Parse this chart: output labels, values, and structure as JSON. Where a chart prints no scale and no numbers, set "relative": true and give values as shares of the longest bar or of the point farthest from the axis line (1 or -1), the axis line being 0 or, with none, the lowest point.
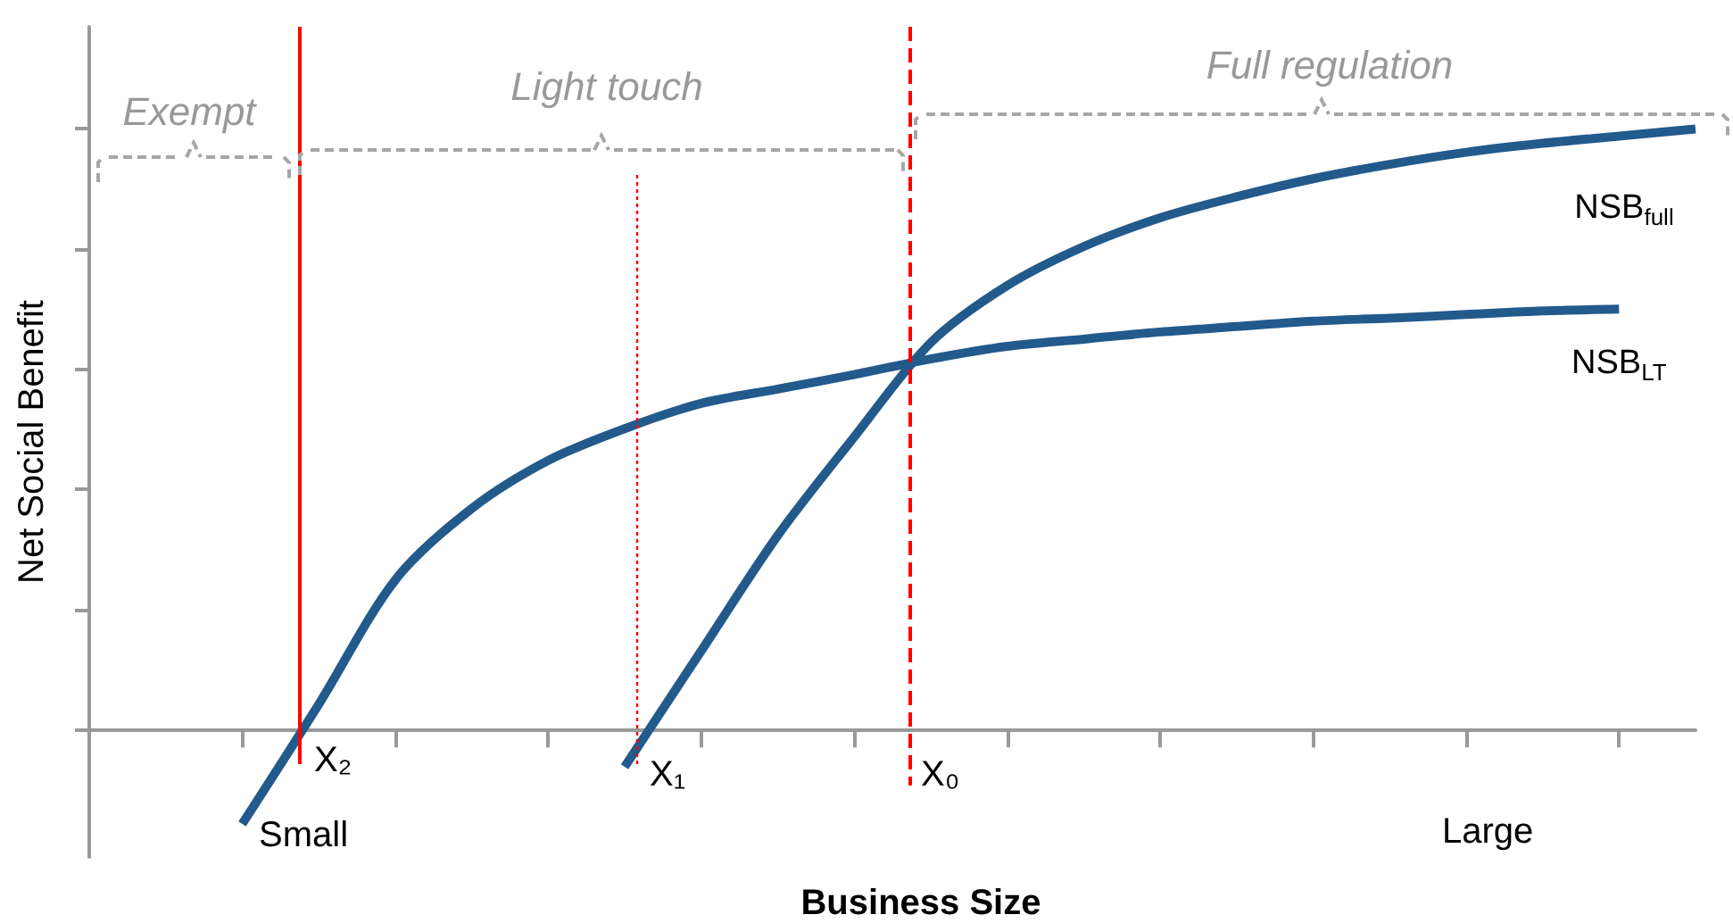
{
  "chart_data": {
    "type": "line",
    "relative": true,
    "ylabel": "Net Social Benefit",
    "categories": [
      null,
      null,
      null,
      null,
      null,
      null,
      null,
      null,
      null,
      null,
      null,
      null,
      null,
      null,
      null,
      null,
      null,
      null,
      null,
      null,
      null,
      null
    ],
    "series": [
      {
        "name": "NSB$_{full}$",
        "color": "#235a8c",
        "values": [
          null,
          null,
          null,
          null,
          null,
          null,
          null,
          -0.062,
          0.131,
          0.323,
          0.487,
          0.644,
          0.739,
          0.804,
          0.852,
          0.887,
          0.917,
          0.941,
          0.961,
          0.976,
          0.988,
          1
        ]
      },
      {
        "name": "NSB$_{LT}$",
        "color": "#235a8c",
        "values": [
          null,
          null,
          -0.157,
          0.042,
          0.249,
          0.368,
          0.448,
          0.501,
          0.543,
          0.567,
          0.591,
          0.617,
          0.638,
          0.65,
          0.662,
          0.671,
          0.68,
          0.685,
          0.691,
          0.697,
          0.7,
          null
        ]
      }
    ],
    "annotations": [
      "Exempt",
      "Light touch",
      "Full regulation",
      "X₂",
      "X₁",
      "X₀",
      "Small",
      "Large",
      "Business Size"
    ],
    "grid": false,
    "legend": false,
    "marker": "none",
    "line_style": "solid"
  }
}
